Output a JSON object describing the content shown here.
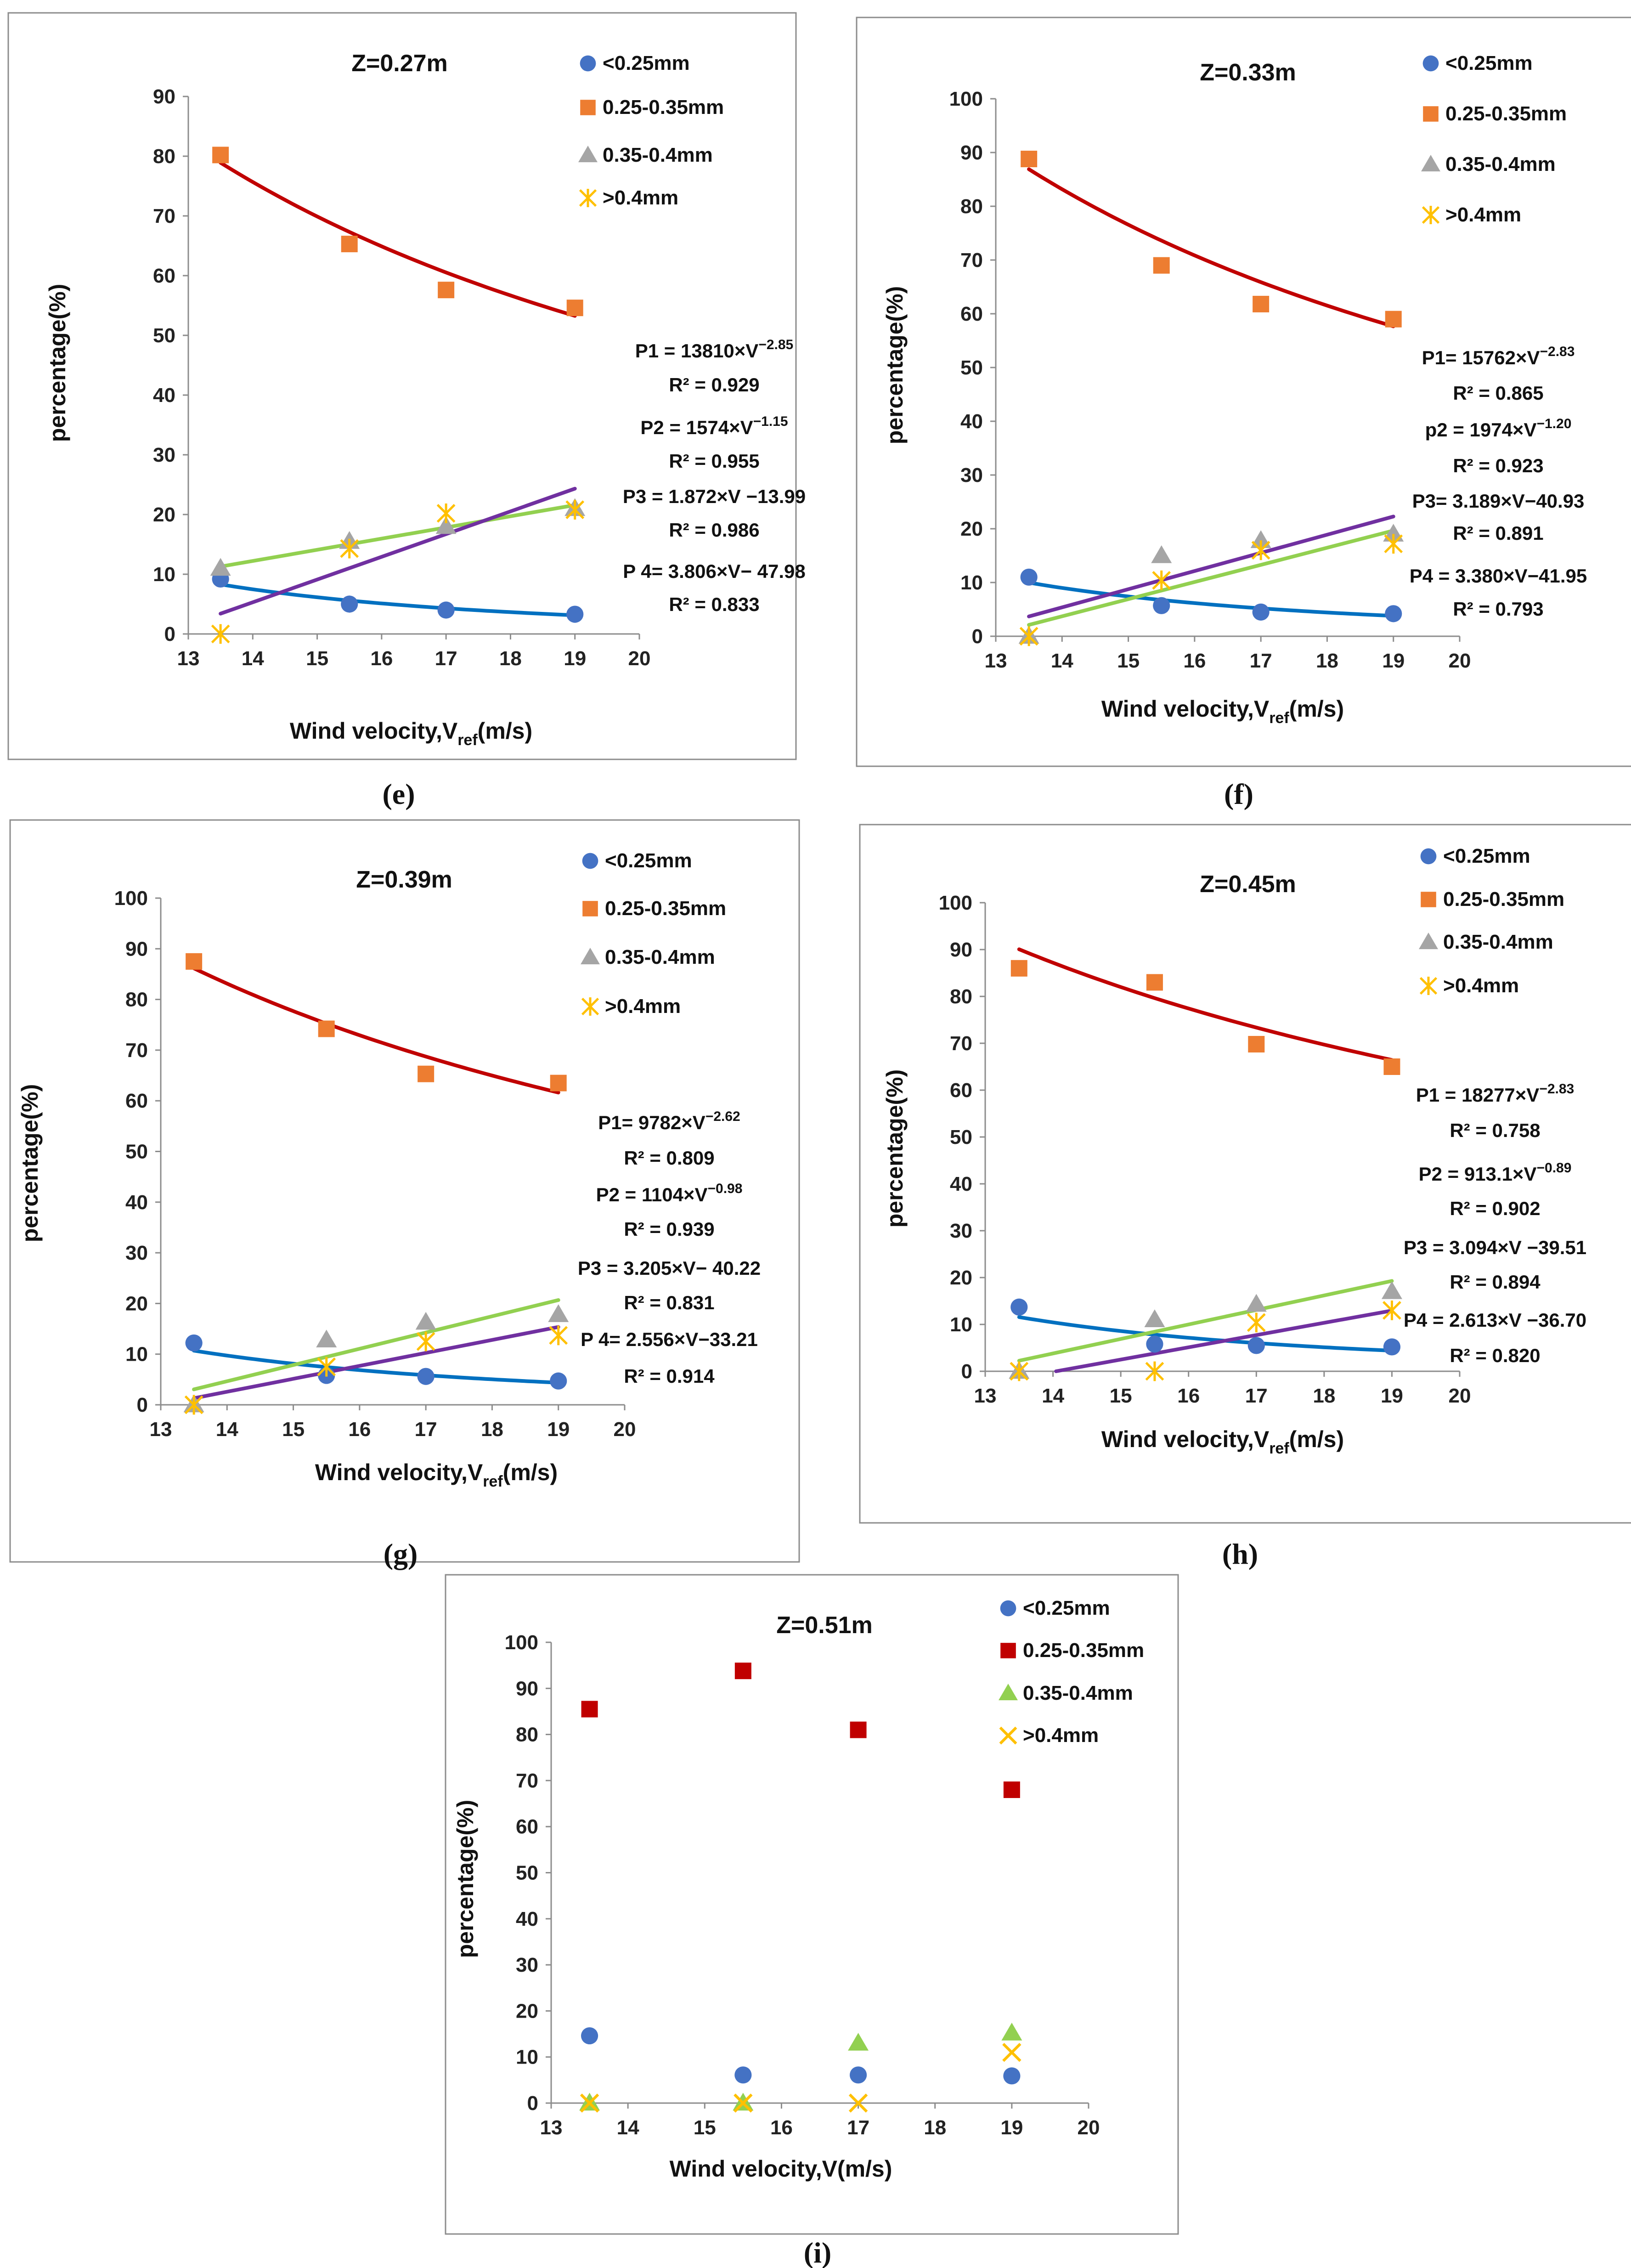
{
  "colors": {
    "s1": "#4472C4",
    "s2": "#ED7D31",
    "s3": "#A5A5A5",
    "s4": "#FFC000",
    "s2_alt": "#C00000",
    "s3_alt": "#92D050",
    "fit1": "#0070C0",
    "fit2": "#C00000",
    "fit3": "#92D050",
    "fit4": "#7030A0"
  },
  "chart_data": [
    {
      "type": "scatter",
      "panel": "e",
      "caption": "(e)",
      "title": "Z=0.27m",
      "xlabel": "Wind velocity,V",
      "xlabel_sub": "ref",
      "xlabel_unit": "(m/s)",
      "ylabel": "percentage(%)",
      "xlim": [
        13,
        20
      ],
      "ylim": [
        0,
        90
      ],
      "xticks": [
        13,
        14,
        15,
        16,
        17,
        18,
        19,
        20
      ],
      "yticks": [
        0,
        10,
        20,
        30,
        40,
        50,
        60,
        70,
        80,
        90
      ],
      "x": [
        13.5,
        15.5,
        17,
        19
      ],
      "series": [
        {
          "name": "<0.25mm",
          "marker": "circle",
          "values": [
            9.2,
            5.0,
            4.0,
            3.3
          ]
        },
        {
          "name": "0.25-0.35mm",
          "marker": "square",
          "values": [
            80.2,
            65.3,
            57.6,
            54.6
          ]
        },
        {
          "name": "0.35-0.4mm",
          "marker": "triangle",
          "values": [
            11.0,
            15.5,
            18.0,
            21.0
          ]
        },
        {
          "name": ">0.4mm",
          "marker": "star",
          "values": [
            0.0,
            14.3,
            20.2,
            20.8
          ]
        }
      ],
      "fits": [
        {
          "series": 0,
          "kind": "power",
          "a": 13810,
          "b": -2.85
        },
        {
          "series": 1,
          "kind": "power",
          "a": 1574,
          "b": -1.15
        },
        {
          "series": 2,
          "kind": "linear",
          "m": 1.872,
          "c": -13.99
        },
        {
          "series": 3,
          "kind": "linear",
          "m": 3.806,
          "c": -47.98
        }
      ],
      "equations": [
        {
          "base": "P1 = 13810×V",
          "sup": "−2.85"
        },
        {
          "base": "R² = 0.929",
          "sup": ""
        },
        {
          "base": "P2 = 1574×V",
          "sup": "−1.15"
        },
        {
          "base": "R² = 0.955",
          "sup": ""
        },
        {
          "base": "P3 = 1.872×V −13.99",
          "sup": ""
        },
        {
          "base": "R² = 0.986",
          "sup": ""
        },
        {
          "base": "P 4= 3.806×V− 47.98",
          "sup": ""
        },
        {
          "base": "R² = 0.833",
          "sup": ""
        }
      ]
    },
    {
      "type": "scatter",
      "panel": "f",
      "caption": "(f)",
      "title": "Z=0.33m",
      "xlabel": "Wind velocity,V",
      "xlabel_sub": "ref",
      "xlabel_unit": "(m/s)",
      "ylabel": "percentage(%)",
      "xlim": [
        13,
        20
      ],
      "ylim": [
        0,
        100
      ],
      "xticks": [
        13,
        14,
        15,
        16,
        17,
        18,
        19,
        20
      ],
      "yticks": [
        0,
        10,
        20,
        30,
        40,
        50,
        60,
        70,
        80,
        90,
        100
      ],
      "x": [
        13.5,
        15.5,
        17,
        19
      ],
      "series": [
        {
          "name": "<0.25mm",
          "marker": "circle",
          "values": [
            11.0,
            5.7,
            4.5,
            4.2
          ]
        },
        {
          "name": "0.25-0.35mm",
          "marker": "square",
          "values": [
            88.8,
            69.0,
            61.8,
            59.0
          ]
        },
        {
          "name": "0.35-0.4mm",
          "marker": "triangle",
          "values": [
            0.0,
            15.0,
            17.8,
            19.0
          ]
        },
        {
          "name": ">0.4mm",
          "marker": "star",
          "values": [
            0.0,
            10.4,
            16.0,
            17.2
          ]
        }
      ],
      "fits": [
        {
          "series": 0,
          "kind": "power",
          "a": 15762,
          "b": -2.83
        },
        {
          "series": 1,
          "kind": "power",
          "a": 1974,
          "b": -1.2
        },
        {
          "series": 2,
          "kind": "linear",
          "m": 3.189,
          "c": -40.93
        },
        {
          "series": 3,
          "kind": "linear",
          "m": 3.38,
          "c": -41.95
        }
      ],
      "equations": [
        {
          "base": "P1= 15762×V",
          "sup": "−2.83"
        },
        {
          "base": "R² = 0.865",
          "sup": ""
        },
        {
          "base": "p2 = 1974×V",
          "sup": "−1.20"
        },
        {
          "base": "R² = 0.923",
          "sup": ""
        },
        {
          "base": "P3= 3.189×V−40.93",
          "sup": ""
        },
        {
          "base": "R² = 0.891",
          "sup": ""
        },
        {
          "base": "P4 = 3.380×V−41.95",
          "sup": ""
        },
        {
          "base": "R² = 0.793",
          "sup": ""
        }
      ]
    },
    {
      "type": "scatter",
      "panel": "g",
      "caption": "(g)",
      "title": "Z=0.39m",
      "xlabel": "Wind velocity,V",
      "xlabel_sub": "ref",
      "xlabel_unit": "(m/s)",
      "ylabel": "percentage(%)",
      "xlim": [
        13,
        20
      ],
      "ylim": [
        0,
        100
      ],
      "xticks": [
        13,
        14,
        15,
        16,
        17,
        18,
        19,
        20
      ],
      "yticks": [
        0,
        10,
        20,
        30,
        40,
        50,
        60,
        70,
        80,
        90,
        100
      ],
      "x": [
        13.5,
        15.5,
        17,
        19
      ],
      "series": [
        {
          "name": "<0.25mm",
          "marker": "circle",
          "values": [
            12.2,
            5.8,
            5.6,
            4.7
          ]
        },
        {
          "name": "0.25-0.35mm",
          "marker": "square",
          "values": [
            87.5,
            74.2,
            65.3,
            63.5
          ]
        },
        {
          "name": "0.35-0.4mm",
          "marker": "triangle",
          "values": [
            0.0,
            12.8,
            16.3,
            17.8
          ]
        },
        {
          "name": ">0.4mm",
          "marker": "star",
          "values": [
            0.0,
            7.5,
            12.5,
            13.7
          ]
        }
      ],
      "fits": [
        {
          "series": 0,
          "kind": "power",
          "a": 9782,
          "b": -2.62
        },
        {
          "series": 1,
          "kind": "power",
          "a": 1104,
          "b": -0.98
        },
        {
          "series": 2,
          "kind": "linear",
          "m": 3.205,
          "c": -40.22
        },
        {
          "series": 3,
          "kind": "linear",
          "m": 2.556,
          "c": -33.21
        }
      ],
      "equations": [
        {
          "base": "P1= 9782×V",
          "sup": "−2.62"
        },
        {
          "base": "R² = 0.809",
          "sup": ""
        },
        {
          "base": "P2 = 1104×V",
          "sup": "−0.98"
        },
        {
          "base": "R² = 0.939",
          "sup": ""
        },
        {
          "base": "P3 = 3.205×V− 40.22",
          "sup": ""
        },
        {
          "base": "R² = 0.831",
          "sup": ""
        },
        {
          "base": "P 4= 2.556×V−33.21",
          "sup": ""
        },
        {
          "base": "R² = 0.914",
          "sup": ""
        }
      ]
    },
    {
      "type": "scatter",
      "panel": "h",
      "caption": "(h)",
      "title": "Z=0.45m",
      "xlabel": "Wind velocity,V",
      "xlabel_sub": "ref",
      "xlabel_unit": "(m/s)",
      "ylabel": "percentage(%)",
      "xlim": [
        13,
        20
      ],
      "ylim": [
        0,
        100
      ],
      "xticks": [
        13,
        14,
        15,
        16,
        17,
        18,
        19,
        20
      ],
      "yticks": [
        0,
        10,
        20,
        30,
        40,
        50,
        60,
        70,
        80,
        90,
        100
      ],
      "x": [
        13.5,
        15.5,
        17,
        19
      ],
      "series": [
        {
          "name": "<0.25mm",
          "marker": "circle",
          "values": [
            13.7,
            5.8,
            5.5,
            5.2
          ]
        },
        {
          "name": "0.25-0.35mm",
          "marker": "square",
          "values": [
            86.0,
            83.0,
            69.8,
            65.0
          ]
        },
        {
          "name": "0.35-0.4mm",
          "marker": "triangle",
          "values": [
            0.0,
            11.0,
            14.3,
            17.0
          ]
        },
        {
          "name": ">0.4mm",
          "marker": "star",
          "values": [
            0.0,
            0.0,
            10.4,
            13.0
          ]
        }
      ],
      "fits": [
        {
          "series": 0,
          "kind": "power",
          "a": 18277,
          "b": -2.83
        },
        {
          "series": 1,
          "kind": "power",
          "a": 913.1,
          "b": -0.89
        },
        {
          "series": 2,
          "kind": "linear",
          "m": 3.094,
          "c": -39.51
        },
        {
          "series": 3,
          "kind": "linear",
          "m": 2.613,
          "c": -36.7
        }
      ],
      "equations": [
        {
          "base": "P1 = 18277×V",
          "sup": "−2.83"
        },
        {
          "base": "R² = 0.758",
          "sup": ""
        },
        {
          "base": "P2 = 913.1×V",
          "sup": "−0.89"
        },
        {
          "base": "R² = 0.902",
          "sup": ""
        },
        {
          "base": "P3 = 3.094×V −39.51",
          "sup": ""
        },
        {
          "base": "R² = 0.894",
          "sup": ""
        },
        {
          "base": "P4 = 2.613×V −36.70",
          "sup": ""
        },
        {
          "base": "R² = 0.820",
          "sup": ""
        }
      ]
    },
    {
      "type": "scatter",
      "panel": "i",
      "caption": "(i)",
      "title": "Z=0.51m",
      "xlabel": "Wind velocity,V(m/s)",
      "xlabel_sub": "",
      "xlabel_unit": "",
      "ylabel": "percentage(%)",
      "xlim": [
        13,
        20
      ],
      "ylim": [
        0,
        100
      ],
      "xticks": [
        13,
        14,
        15,
        16,
        17,
        18,
        19,
        20
      ],
      "yticks": [
        0,
        10,
        20,
        30,
        40,
        50,
        60,
        70,
        80,
        90,
        100
      ],
      "x": [
        13.5,
        15.5,
        17,
        19
      ],
      "series": [
        {
          "name": "<0.25mm",
          "marker": "circle",
          "values": [
            14.6,
            6.1,
            6.1,
            5.9
          ]
        },
        {
          "name": "0.25-0.35mm",
          "marker": "square",
          "values": [
            85.5,
            93.8,
            81.0,
            68.0
          ]
        },
        {
          "name": "0.35-0.4mm",
          "marker": "triangle",
          "values": [
            0.0,
            0.0,
            13.0,
            15.2
          ]
        },
        {
          "name": ">0.4mm",
          "marker": "xstar",
          "values": [
            0.0,
            0.0,
            0.0,
            11.0
          ]
        }
      ],
      "fits": [],
      "equations": []
    }
  ]
}
